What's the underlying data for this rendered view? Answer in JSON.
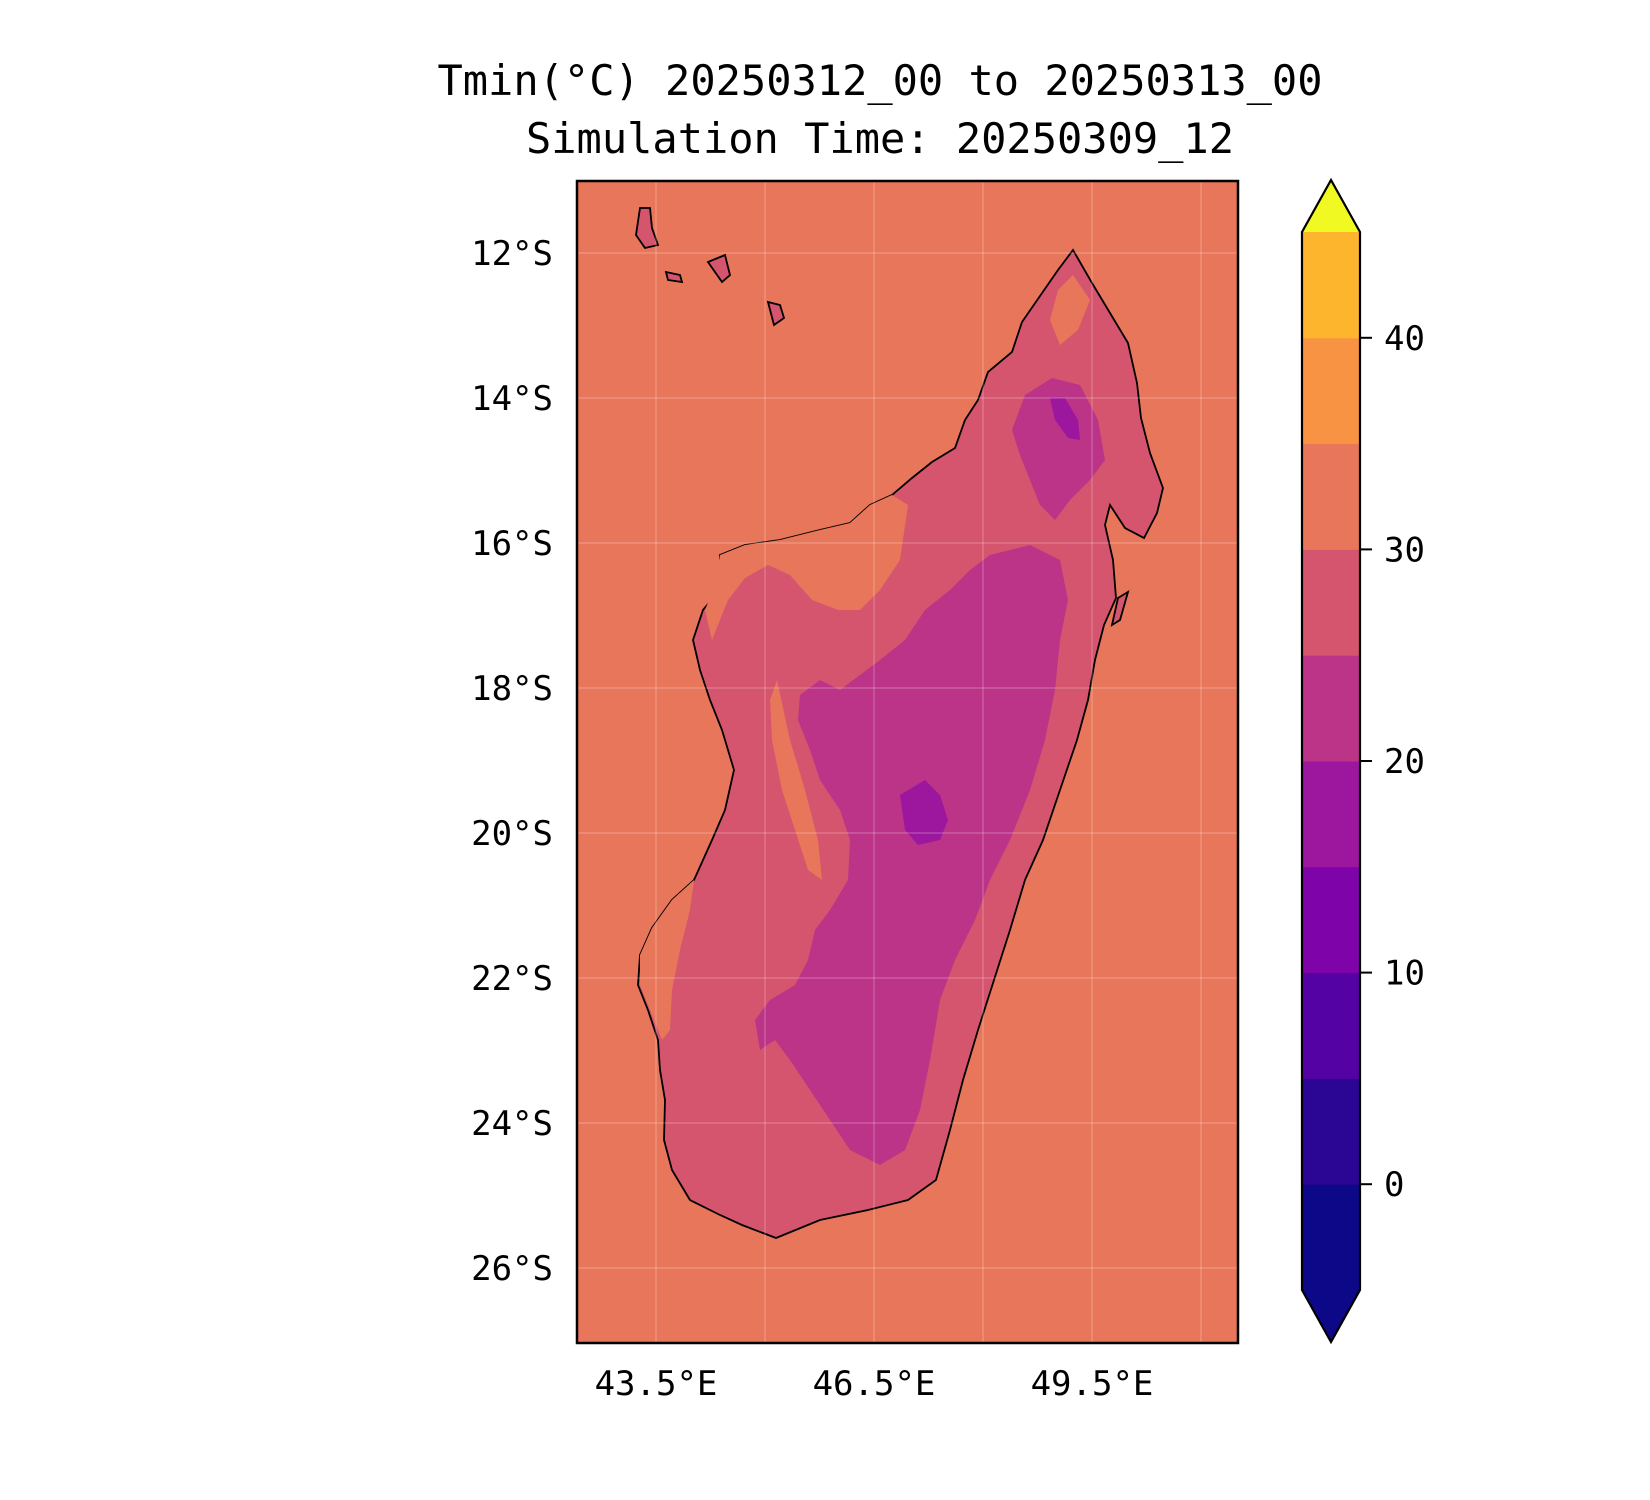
{
  "title_line1": "Tmin(°C) 20250312_00 to 20250313_00",
  "title_line2": "Simulation Time: 20250309_12",
  "map": {
    "lat_ticks": [
      "12°S",
      "14°S",
      "16°S",
      "18°S",
      "20°S",
      "22°S",
      "24°S",
      "26°S"
    ],
    "lon_ticks": [
      "43.5°E",
      "46.5°E",
      "49.5°E"
    ],
    "ocean_color": "#e8765a",
    "gridlines": true
  },
  "colorbar": {
    "ticks": [
      "0",
      "10",
      "20",
      "30",
      "40"
    ],
    "levels": [
      -5,
      0,
      5,
      10,
      15,
      20,
      25,
      30,
      35,
      40,
      45
    ],
    "extend": "both",
    "colors": [
      "#0d0887",
      "#2b0594",
      "#5402a3",
      "#7e03a8",
      "#9c179e",
      "#bb3488",
      "#d5546e",
      "#e8765a",
      "#f79342",
      "#fdb52e",
      "#f3e11f"
    ],
    "under_color": "#0d0887",
    "over_color": "#f0f921"
  }
}
